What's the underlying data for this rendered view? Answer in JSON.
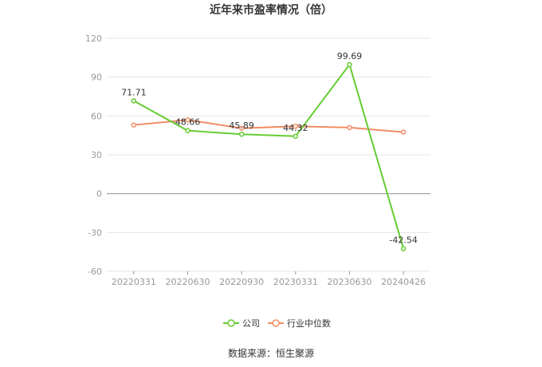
{
  "chart_data": {
    "type": "line",
    "title": "近年来市盈率情况（倍）",
    "categories": [
      "20220331",
      "20220630",
      "20220930",
      "20230331",
      "20230630",
      "20240426"
    ],
    "series": [
      {
        "name": "公司",
        "values": [
          71.71,
          48.66,
          45.89,
          44.32,
          99.69,
          -42.54
        ],
        "color": "#66cc33",
        "labels": [
          "71.71",
          "48.66",
          "45.89",
          "44.32",
          "99.69",
          "-42.54"
        ]
      },
      {
        "name": "行业中位数",
        "values": [
          53.0,
          57.0,
          50.5,
          52.0,
          51.0,
          47.5
        ],
        "color": "#f28c65"
      }
    ],
    "ylim": [
      -60,
      120
    ],
    "yticks": [
      "120",
      "90",
      "60",
      "30",
      "0",
      "-30",
      "-60"
    ],
    "grid": true,
    "legend_position": "bottom-center"
  },
  "source_text": "数据来源：恒生聚源"
}
